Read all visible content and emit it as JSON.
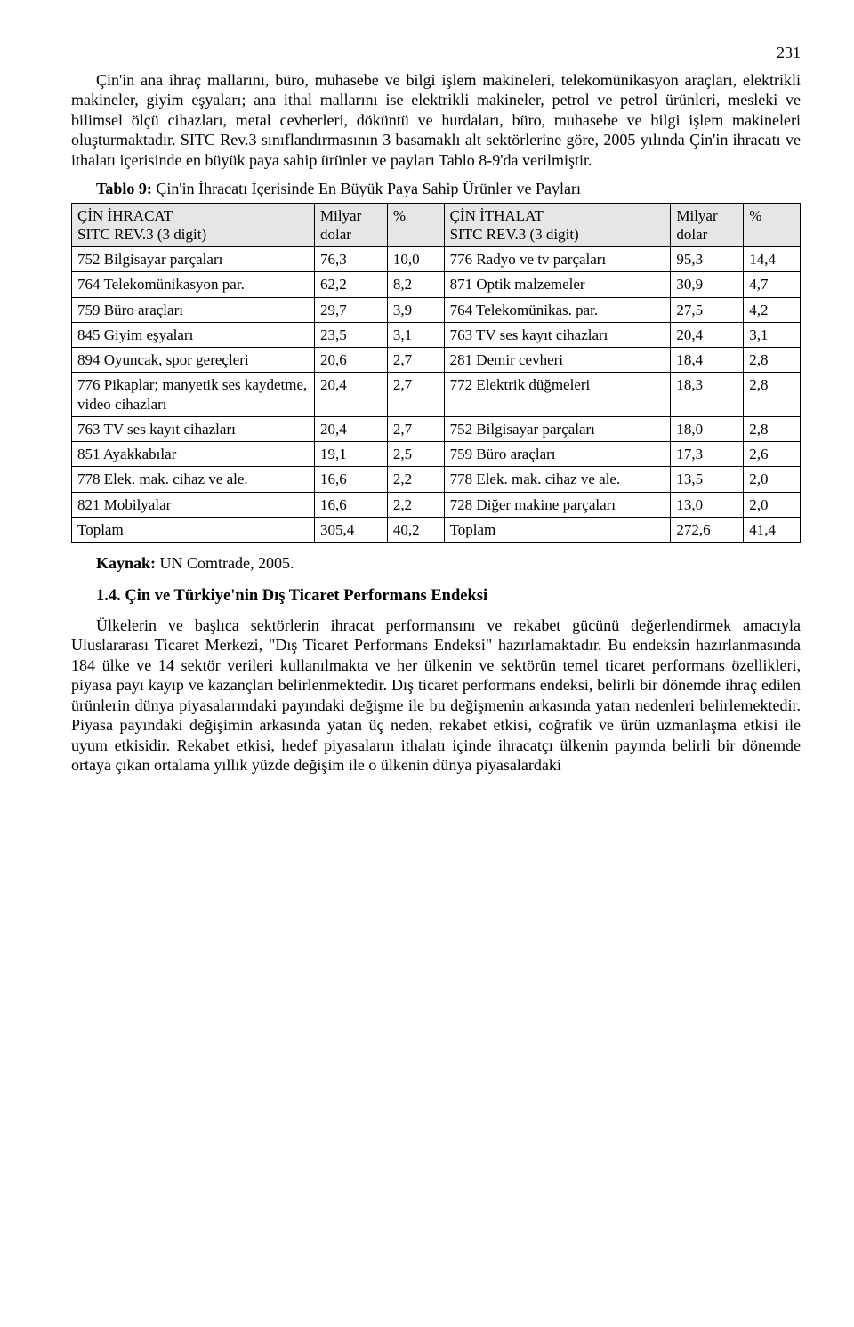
{
  "page_number": "231",
  "para1": "Çin'in ana ihraç mallarını, büro, muhasebe ve bilgi işlem makineleri, telekomünikasyon araçları, elektrikli makineler, giyim eşyaları; ana ithal mallarını ise elektrikli makineler, petrol ve petrol ürünleri, mesleki ve bilimsel ölçü cihazları, metal cevherleri, döküntü ve hurdaları, büro, muhasebe ve bilgi işlem makineleri oluşturmaktadır. SITC Rev.3 sınıflandırmasının 3 basamaklı alt sektörlerine göre, 2005 yılında Çin'in ihracatı ve ithalatı içerisinde en büyük paya sahip ürünler ve payları Tablo 8-9'da verilmiştir.",
  "table_title_bold": "Tablo 9:",
  "table_title_rest": " Çin'in İhracatı İçerisinde En Büyük Paya Sahip Ürünler ve Payları",
  "headers": {
    "export_col": "ÇİN İHRACAT\nSITC REV.3 (3 digit)",
    "milyar_dolar": "Milyar\ndolar",
    "pct": "%",
    "import_col": "ÇİN İTHALAT\nSITC REV.3 (3 digit)"
  },
  "rows": [
    {
      "e": "752 Bilgisayar parçaları",
      "ev": "76,3",
      "ep": "10,0",
      "i": "776 Radyo ve tv parçaları",
      "iv": "95,3",
      "ip": "14,4"
    },
    {
      "e": "764 Telekomünikasyon par.",
      "ev": "62,2",
      "ep": "8,2",
      "i": "871 Optik malzemeler",
      "iv": "30,9",
      "ip": "4,7"
    },
    {
      "e": "759 Büro araçları",
      "ev": "29,7",
      "ep": "3,9",
      "i": "764 Telekomünikas. par.",
      "iv": "27,5",
      "ip": "4,2"
    },
    {
      "e": "845 Giyim eşyaları",
      "ev": "23,5",
      "ep": "3,1",
      "i": "763 TV ses kayıt cihazları",
      "iv": "20,4",
      "ip": "3,1"
    },
    {
      "e": "894 Oyuncak, spor gereçleri",
      "ev": "20,6",
      "ep": "2,7",
      "i": "281 Demir cevheri",
      "iv": "18,4",
      "ip": "2,8"
    },
    {
      "e": "776 Pikaplar; manyetik ses kaydetme, video cihazları",
      "ev": "20,4",
      "ep": "2,7",
      "i": "772 Elektrik düğmeleri",
      "iv": "18,3",
      "ip": "2,8"
    },
    {
      "e": "763 TV ses kayıt cihazları",
      "ev": "20,4",
      "ep": "2,7",
      "i": "752 Bilgisayar parçaları",
      "iv": "18,0",
      "ip": "2,8"
    },
    {
      "e": "851 Ayakkabılar",
      "ev": "19,1",
      "ep": "2,5",
      "i": "759 Büro araçları",
      "iv": "17,3",
      "ip": "2,6"
    },
    {
      "e": "778 Elek. mak. cihaz ve ale.",
      "ev": "16,6",
      "ep": "2,2",
      "i": "778 Elek. mak. cihaz ve ale.",
      "iv": "13,5",
      "ip": "2,0"
    },
    {
      "e": "821 Mobilyalar",
      "ev": "16,6",
      "ep": "2,2",
      "i": "728 Diğer makine parçaları",
      "iv": "13,0",
      "ip": "2,0"
    },
    {
      "e": "Toplam",
      "ev": "305,4",
      "ep": "40,2",
      "i": "Toplam",
      "iv": "272,6",
      "ip": "41,4"
    }
  ],
  "source_bold": "Kaynak:",
  "source_rest": " UN Comtrade, 2005.",
  "section_heading": "1.4. Çin ve Türkiye'nin Dış Ticaret Performans Endeksi",
  "para2": "Ülkelerin ve başlıca sektörlerin ihracat performansını ve rekabet gücünü değerlendirmek amacıyla Uluslararası Ticaret Merkezi, \"Dış Ticaret Performans Endeksi\" hazırlamaktadır. Bu endeksin hazırlanmasında 184 ülke ve 14 sektör verileri kullanılmakta ve her ülkenin ve sektörün temel ticaret performans özellikleri, piyasa payı kayıp ve kazançları belirlenmektedir. Dış ticaret performans endeksi, belirli bir dönemde ihraç edilen ürünlerin dünya piyasalarındaki payındaki değişme ile bu değişmenin arkasında yatan nedenleri belirlemektedir. Piyasa payındaki değişimin arkasında yatan üç neden, rekabet etkisi, coğrafik ve ürün uzmanlaşma etkisi ile uyum etkisidir. Rekabet etkisi, hedef piyasaların ithalatı içinde ihracatçı ülkenin payında belirli bir dönemde ortaya çıkan ortalama yıllık yüzde değişim ile o ülkenin dünya piyasalardaki"
}
